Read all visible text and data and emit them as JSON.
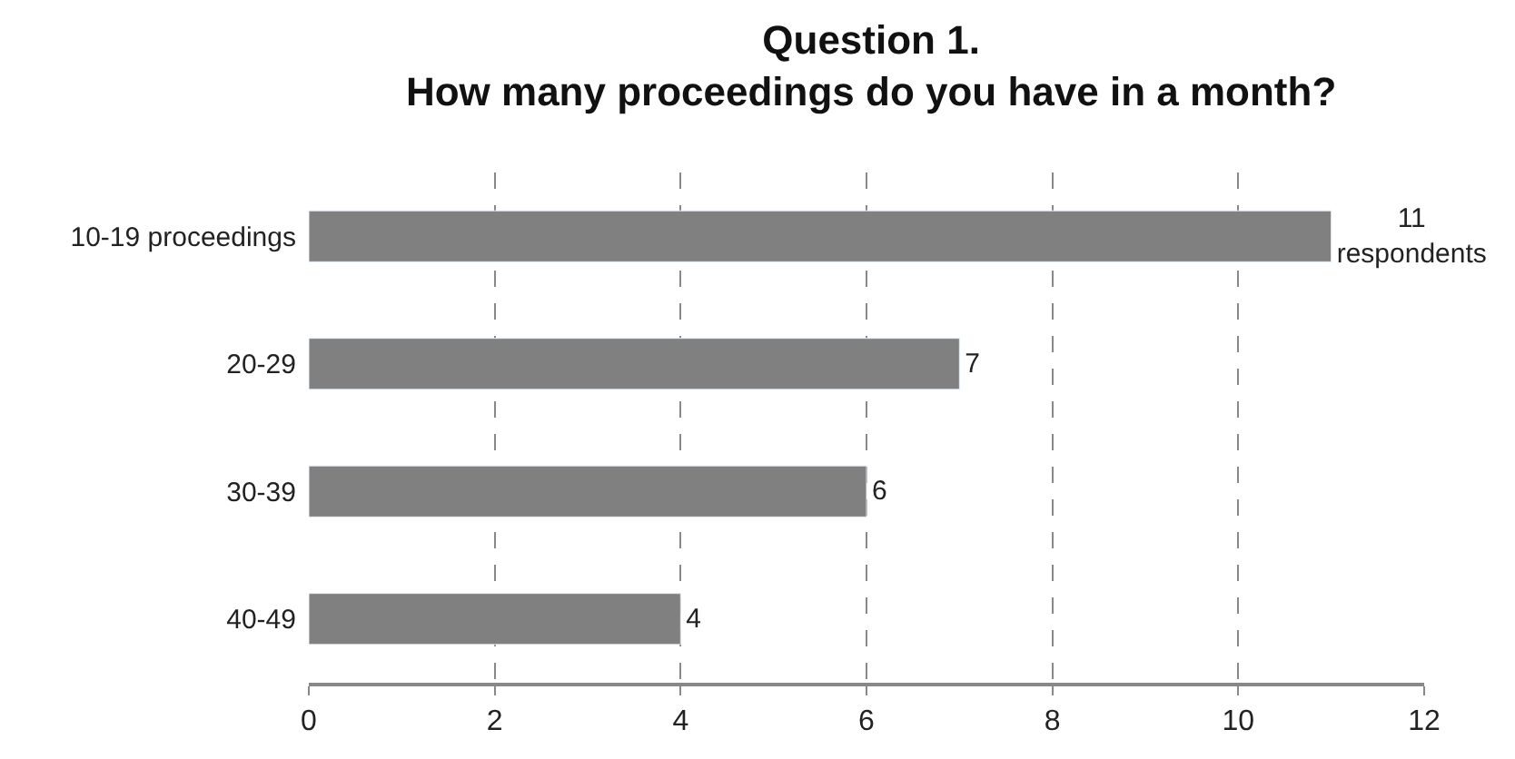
{
  "chart_data": {
    "type": "bar",
    "orientation": "horizontal",
    "title": "Question 1.\nHow many proceedings do you have in a month?",
    "categories": [
      "10-19 proceedings",
      "20-29",
      "30-39",
      "40-49"
    ],
    "values": [
      11,
      7,
      6,
      4
    ],
    "color": "#808080",
    "value_labels": [
      "11\nrespondents",
      "7",
      "6",
      "4"
    ],
    "xlim": [
      0,
      12
    ],
    "xticks": [
      0,
      2,
      4,
      6,
      8,
      10,
      12
    ],
    "grid": "x"
  }
}
